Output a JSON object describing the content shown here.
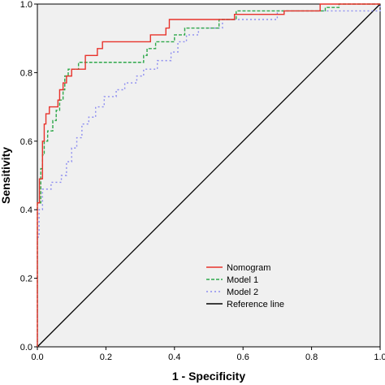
{
  "chart_data": {
    "type": "line",
    "xlabel": "1 - Specificity",
    "ylabel": "Sensitivity",
    "xlim": [
      0,
      1.0
    ],
    "ylim": [
      0,
      1.0
    ],
    "xticks": [
      "0.0",
      "0.2",
      "0.4",
      "0.6",
      "0.8",
      "1.0"
    ],
    "yticks": [
      "0.0",
      "0.2",
      "0.4",
      "0.6",
      "0.8",
      "1.0"
    ],
    "grid": false,
    "legend_position": "bottom-right",
    "colors": {
      "plot_background": "#f0f0f0",
      "nomogram": "#e8322b",
      "model1": "#2ea84a",
      "model2": "#8c8cf0",
      "reference": "#000000"
    },
    "series": [
      {
        "name": "Nomogram",
        "style": "solid",
        "color": "#e8322b",
        "points": [
          [
            0,
            0
          ],
          [
            0,
            0.42
          ],
          [
            0.006,
            0.42
          ],
          [
            0.006,
            0.49
          ],
          [
            0.015,
            0.49
          ],
          [
            0.015,
            0.6
          ],
          [
            0.02,
            0.6
          ],
          [
            0.02,
            0.65
          ],
          [
            0.025,
            0.65
          ],
          [
            0.025,
            0.68
          ],
          [
            0.035,
            0.68
          ],
          [
            0.035,
            0.7
          ],
          [
            0.06,
            0.7
          ],
          [
            0.06,
            0.72
          ],
          [
            0.065,
            0.72
          ],
          [
            0.065,
            0.75
          ],
          [
            0.075,
            0.75
          ],
          [
            0.075,
            0.77
          ],
          [
            0.085,
            0.77
          ],
          [
            0.085,
            0.79
          ],
          [
            0.1,
            0.79
          ],
          [
            0.1,
            0.81
          ],
          [
            0.14,
            0.81
          ],
          [
            0.14,
            0.85
          ],
          [
            0.175,
            0.85
          ],
          [
            0.175,
            0.87
          ],
          [
            0.19,
            0.87
          ],
          [
            0.19,
            0.89
          ],
          [
            0.33,
            0.89
          ],
          [
            0.33,
            0.91
          ],
          [
            0.375,
            0.91
          ],
          [
            0.375,
            0.93
          ],
          [
            0.385,
            0.93
          ],
          [
            0.385,
            0.955
          ],
          [
            0.575,
            0.955
          ],
          [
            0.575,
            0.97
          ],
          [
            0.72,
            0.97
          ],
          [
            0.72,
            0.98
          ],
          [
            0.825,
            0.98
          ],
          [
            0.825,
            1.0
          ],
          [
            1.0,
            1.0
          ]
        ]
      },
      {
        "name": "Model 1",
        "style": "dashed",
        "color": "#2ea84a",
        "points": [
          [
            0,
            0
          ],
          [
            0,
            0.42
          ],
          [
            0.01,
            0.42
          ],
          [
            0.01,
            0.52
          ],
          [
            0.015,
            0.52
          ],
          [
            0.015,
            0.56
          ],
          [
            0.02,
            0.56
          ],
          [
            0.02,
            0.6
          ],
          [
            0.03,
            0.6
          ],
          [
            0.03,
            0.63
          ],
          [
            0.045,
            0.63
          ],
          [
            0.045,
            0.66
          ],
          [
            0.055,
            0.66
          ],
          [
            0.055,
            0.69
          ],
          [
            0.065,
            0.69
          ],
          [
            0.065,
            0.72
          ],
          [
            0.075,
            0.72
          ],
          [
            0.075,
            0.75
          ],
          [
            0.08,
            0.75
          ],
          [
            0.08,
            0.79
          ],
          [
            0.09,
            0.79
          ],
          [
            0.09,
            0.81
          ],
          [
            0.12,
            0.81
          ],
          [
            0.12,
            0.83
          ],
          [
            0.31,
            0.83
          ],
          [
            0.31,
            0.85
          ],
          [
            0.32,
            0.85
          ],
          [
            0.32,
            0.87
          ],
          [
            0.345,
            0.87
          ],
          [
            0.345,
            0.89
          ],
          [
            0.4,
            0.89
          ],
          [
            0.4,
            0.91
          ],
          [
            0.43,
            0.91
          ],
          [
            0.43,
            0.93
          ],
          [
            0.53,
            0.93
          ],
          [
            0.53,
            0.955
          ],
          [
            0.58,
            0.955
          ],
          [
            0.58,
            0.98
          ],
          [
            0.84,
            0.98
          ],
          [
            0.84,
            0.99
          ],
          [
            0.88,
            0.99
          ],
          [
            0.88,
            1.0
          ],
          [
            1.0,
            1.0
          ]
        ]
      },
      {
        "name": "Model 2",
        "style": "dotted",
        "color": "#8c8cf0",
        "points": [
          [
            0,
            0
          ],
          [
            0,
            0.32
          ],
          [
            0.005,
            0.32
          ],
          [
            0.005,
            0.4
          ],
          [
            0.015,
            0.4
          ],
          [
            0.015,
            0.46
          ],
          [
            0.04,
            0.46
          ],
          [
            0.04,
            0.48
          ],
          [
            0.07,
            0.48
          ],
          [
            0.07,
            0.5
          ],
          [
            0.085,
            0.5
          ],
          [
            0.085,
            0.54
          ],
          [
            0.1,
            0.54
          ],
          [
            0.1,
            0.58
          ],
          [
            0.115,
            0.58
          ],
          [
            0.115,
            0.61
          ],
          [
            0.13,
            0.61
          ],
          [
            0.13,
            0.65
          ],
          [
            0.15,
            0.65
          ],
          [
            0.15,
            0.67
          ],
          [
            0.17,
            0.67
          ],
          [
            0.17,
            0.7
          ],
          [
            0.195,
            0.7
          ],
          [
            0.195,
            0.73
          ],
          [
            0.23,
            0.73
          ],
          [
            0.23,
            0.75
          ],
          [
            0.255,
            0.75
          ],
          [
            0.255,
            0.77
          ],
          [
            0.29,
            0.77
          ],
          [
            0.29,
            0.79
          ],
          [
            0.31,
            0.79
          ],
          [
            0.31,
            0.81
          ],
          [
            0.35,
            0.81
          ],
          [
            0.35,
            0.835
          ],
          [
            0.39,
            0.835
          ],
          [
            0.39,
            0.86
          ],
          [
            0.41,
            0.86
          ],
          [
            0.41,
            0.89
          ],
          [
            0.435,
            0.89
          ],
          [
            0.435,
            0.91
          ],
          [
            0.47,
            0.91
          ],
          [
            0.47,
            0.93
          ],
          [
            0.54,
            0.93
          ],
          [
            0.54,
            0.955
          ],
          [
            0.7,
            0.955
          ],
          [
            0.7,
            0.98
          ],
          [
            1.0,
            0.98
          ],
          [
            1.0,
            1.0
          ]
        ]
      },
      {
        "name": "Reference line",
        "style": "solid",
        "color": "#000000",
        "points": [
          [
            0,
            0
          ],
          [
            1,
            1
          ]
        ]
      }
    ]
  }
}
